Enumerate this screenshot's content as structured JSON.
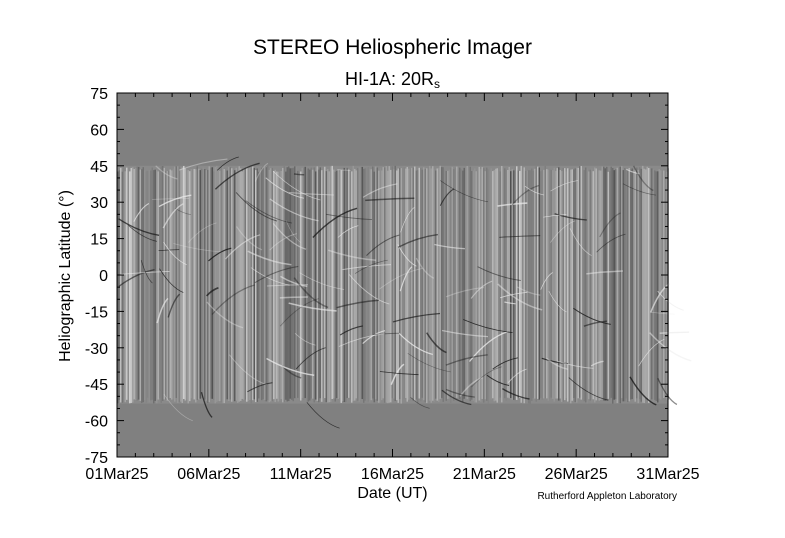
{
  "chart_data": {
    "type": "heatmap",
    "title": "STEREO Heliospheric Imager",
    "subtitle_main": "HI-1A: 20R",
    "subtitle_sub": "s",
    "xlabel": "Date (UT)",
    "ylabel": "Heliographic Latitude (°)",
    "credit": "Rutherford Appleton Laboratory",
    "x_ticks": [
      "01Mar25",
      "06Mar25",
      "11Mar25",
      "16Mar25",
      "21Mar25",
      "26Mar25",
      "31Mar25"
    ],
    "y_ticks": [
      75,
      60,
      45,
      30,
      15,
      0,
      -15,
      -30,
      -45,
      -60,
      -75
    ],
    "xlim": [
      "2025-03-01",
      "2025-03-31"
    ],
    "ylim": [
      -75,
      75
    ],
    "data_coverage_latitude": [
      -53,
      45
    ],
    "no_data_color": "#808080",
    "colormap": "grayscale difference (black to white)"
  }
}
